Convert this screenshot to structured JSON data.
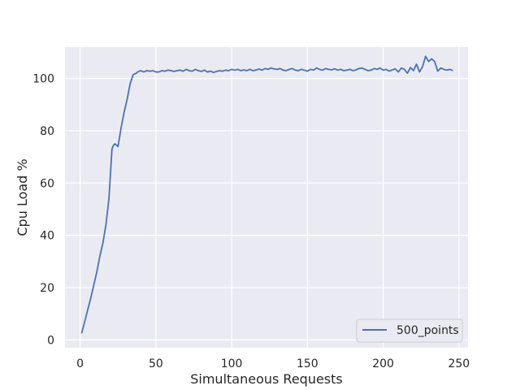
{
  "chart_data": {
    "type": "line",
    "title": "",
    "xlabel": "Simultaneous Requests",
    "ylabel": "Cpu Load %",
    "xlim": [
      -10,
      256
    ],
    "ylim": [
      -3,
      112
    ],
    "xticks": [
      0,
      50,
      100,
      150,
      200,
      250
    ],
    "yticks": [
      0,
      20,
      40,
      60,
      80,
      100
    ],
    "xtick_labels": [
      "0",
      "50",
      "100",
      "150",
      "200",
      "250"
    ],
    "ytick_labels": [
      "0",
      "20",
      "40",
      "60",
      "80",
      "100"
    ],
    "grid": true,
    "legend_position": "lower-right",
    "series": [
      {
        "name": "500_points",
        "color": "#4c72b0",
        "x": [
          1,
          3,
          5,
          7,
          9,
          11,
          13,
          15,
          17,
          19,
          21,
          22,
          23,
          25,
          27,
          29,
          31,
          33,
          35,
          37,
          38,
          40,
          42,
          44,
          46,
          48,
          50,
          52,
          54,
          56,
          58,
          60,
          62,
          64,
          66,
          68,
          70,
          72,
          74,
          76,
          78,
          80,
          82,
          84,
          86,
          88,
          90,
          92,
          94,
          96,
          98,
          100,
          102,
          104,
          106,
          108,
          110,
          112,
          114,
          116,
          118,
          120,
          122,
          124,
          126,
          128,
          130,
          132,
          134,
          136,
          138,
          140,
          142,
          144,
          146,
          148,
          150,
          152,
          154,
          156,
          158,
          160,
          162,
          164,
          166,
          168,
          170,
          172,
          174,
          176,
          178,
          180,
          182,
          184,
          186,
          188,
          190,
          192,
          194,
          196,
          198,
          200,
          202,
          204,
          206,
          208,
          210,
          212,
          214,
          216,
          218,
          220,
          222,
          224,
          226,
          228,
          230,
          232,
          234,
          236,
          238,
          240,
          242,
          244,
          246
        ],
        "y": [
          2.5,
          7,
          11.5,
          16,
          21,
          26,
          32,
          37,
          44,
          54,
          73,
          74.5,
          75,
          74,
          81,
          87,
          92,
          98,
          101.5,
          102,
          102.5,
          103,
          102.5,
          103,
          102.8,
          103,
          102.5,
          102.5,
          103,
          102.8,
          103.2,
          103,
          102.7,
          103,
          103.2,
          102.8,
          103.5,
          103,
          102.8,
          103.5,
          103,
          102.7,
          103.2,
          102.5,
          102.8,
          102.3,
          102.7,
          103,
          102.8,
          103.2,
          103,
          103.5,
          103.2,
          103.5,
          103,
          103.3,
          103,
          103.5,
          103,
          103.2,
          103.6,
          103.2,
          103.8,
          103.5,
          104,
          103.7,
          103.5,
          103.8,
          103.2,
          103,
          103.5,
          103.8,
          103.2,
          103,
          103.5,
          103.2,
          102.8,
          103.5,
          103.2,
          104,
          103.5,
          103.2,
          103.8,
          103.5,
          103.3,
          103.7,
          103.2,
          103.5,
          103,
          103.2,
          103.5,
          103,
          103.3,
          103.8,
          104,
          103.5,
          103,
          103.2,
          103.8,
          103.5,
          104,
          103.2,
          103.5,
          102.8,
          103.3,
          103.7,
          102.5,
          104,
          103.5,
          102,
          104.2,
          103,
          105.5,
          102.5,
          104.5,
          108.5,
          106.5,
          107.5,
          106.5,
          102.8,
          104,
          103.5,
          103.2,
          103.5,
          103
        ]
      }
    ]
  }
}
